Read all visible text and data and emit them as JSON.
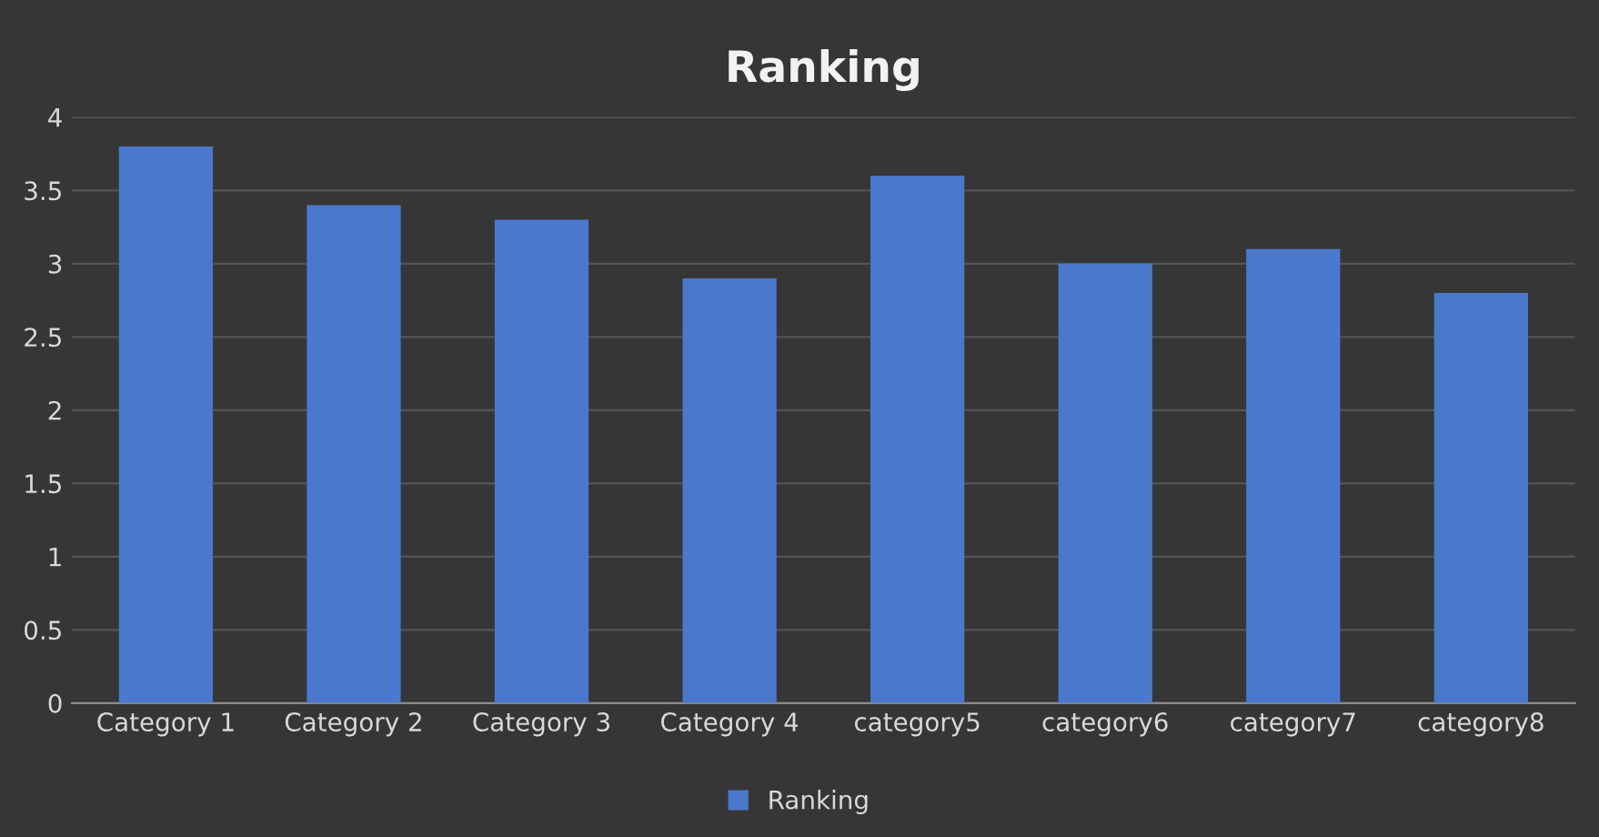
{
  "chart_data": {
    "type": "bar",
    "title": "Ranking",
    "categories": [
      "Category 1",
      "Category 2",
      "Category 3",
      "Category 4",
      "category5",
      "category6",
      "category7",
      "category8"
    ],
    "series": [
      {
        "name": "Ranking",
        "color": "#4a78cc",
        "values": [
          3.8,
          3.4,
          3.3,
          2.9,
          3.6,
          3.0,
          3.1,
          2.8
        ]
      }
    ],
    "ylim": [
      0,
      4
    ],
    "yticks": [
      0,
      {
        "value": 0.5,
        "label": "0.5"
      },
      1,
      {
        "value": 1.5,
        "label": "1.5"
      },
      2,
      {
        "value": 2.5,
        "label": "2.5"
      },
      3,
      {
        "value": 3.5,
        "label": "3.5"
      },
      4
    ],
    "grid": "y",
    "legend": "bottom"
  }
}
